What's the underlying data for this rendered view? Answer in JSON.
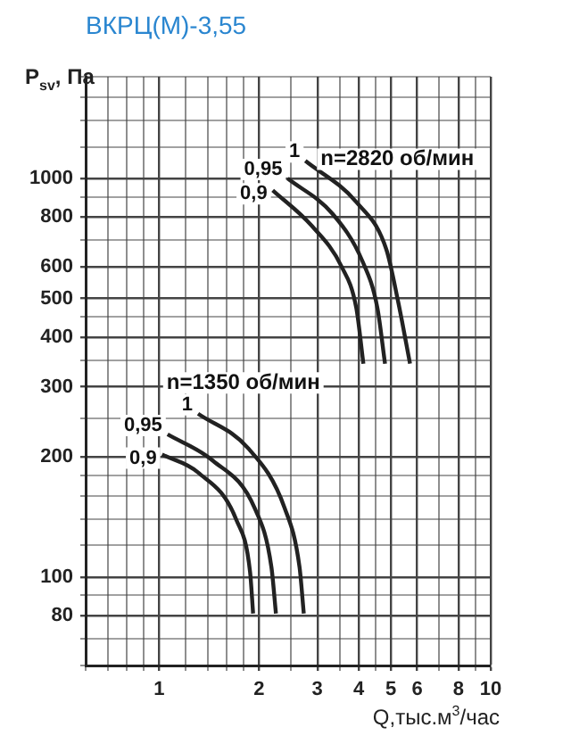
{
  "chart_data": {
    "type": "line",
    "title": "ВКРЦ(М)-3,55",
    "xlabel": "Q,тыс.м$^{3}$/час",
    "ylabel": "P$_{sv}$, Па",
    "log": "xy",
    "grid": true,
    "legend": false,
    "marker": "none",
    "line_style": "solid",
    "xlim": [
      0.6,
      10
    ],
    "ylim": [
      60,
      1800
    ],
    "xticks": [
      {
        "value": 0.6,
        "label": null
      },
      {
        "value": 0.7,
        "label": null
      },
      {
        "value": 0.8,
        "label": null
      },
      {
        "value": 0.9,
        "label": null
      },
      1,
      {
        "value": 1.2,
        "label": null
      },
      {
        "value": 1.4,
        "label": null
      },
      {
        "value": 1.6,
        "label": null
      },
      {
        "value": 1.8,
        "label": null
      },
      2,
      {
        "value": 2.5,
        "label": null
      },
      3,
      {
        "value": 3.5,
        "label": null
      },
      4,
      {
        "value": 4.5,
        "label": null
      },
      5,
      6,
      {
        "value": 7,
        "label": null
      },
      8,
      {
        "value": 9,
        "label": null
      },
      10
    ],
    "yticks": [
      {
        "value": 60,
        "label": null
      },
      {
        "value": 70,
        "label": null
      },
      80,
      {
        "value": 90,
        "label": null
      },
      100,
      {
        "value": 120,
        "label": null
      },
      {
        "value": 140,
        "label": null
      },
      {
        "value": 160,
        "label": null
      },
      {
        "value": 180,
        "label": null
      },
      200,
      {
        "value": 250,
        "label": null
      },
      300,
      {
        "value": 350,
        "label": null
      },
      400,
      {
        "value": 450,
        "label": null
      },
      500,
      600,
      {
        "value": 700,
        "label": null
      },
      800,
      {
        "value": 900,
        "label": null
      },
      1000,
      {
        "value": 1200,
        "label": null
      },
      {
        "value": 1400,
        "label": null
      },
      {
        "value": 1600,
        "label": null
      },
      {
        "value": 1800,
        "label": null
      }
    ],
    "series": [
      {
        "name": "1",
        "color": "#222222",
        "x": [
          2.76,
          3.93,
          4.84,
          5.26,
          5.71
        ],
        "values": [
          1107,
          873,
          665,
          490,
          343
        ]
      },
      {
        "name": "0,95",
        "color": "#222222",
        "x": [
          2.44,
          3.33,
          4.1,
          4.55,
          4.8
        ],
        "values": [
          1000,
          816,
          621,
          474,
          343
        ]
      },
      {
        "name": "0,9",
        "color": "#222222",
        "x": [
          2.2,
          2.88,
          3.55,
          3.93,
          4.13
        ],
        "values": [
          934,
          762,
          601,
          474,
          343
        ]
      },
      {
        "name": "1",
        "color": "#222222",
        "x": [
          1.31,
          1.86,
          2.39,
          2.65,
          2.73
        ],
        "values": [
          257,
          210,
          149,
          106,
          81
        ]
      },
      {
        "name": "0,95",
        "color": "#222222",
        "x": [
          1.06,
          1.45,
          1.94,
          2.18,
          2.25
        ],
        "values": [
          228,
          196,
          149,
          106,
          81
        ]
      },
      {
        "name": "0,9",
        "color": "#222222",
        "x": [
          1.02,
          1.31,
          1.71,
          1.88,
          1.92
        ],
        "values": [
          203,
          183,
          139,
          103,
          81
        ]
      }
    ],
    "annotations": [
      "n=2820 об/мин",
      "n=1350 об/мин"
    ]
  }
}
